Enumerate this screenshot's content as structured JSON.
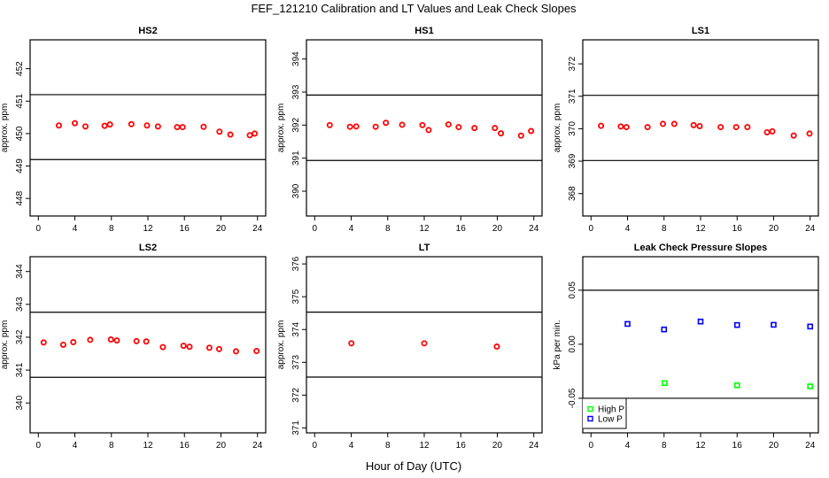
{
  "title": "FEF_121210  Calibration and LT Values and Leak Check Slopes",
  "xlabel": "Hour of Day (UTC)",
  "colors": {
    "calibration": "#ff0000",
    "high_p": "#00ff00",
    "low_p": "#0000ff",
    "reference_lines": "#000000"
  },
  "chart_data": [
    {
      "type": "scatter",
      "title": "HS2",
      "ylabel": "approx. ppm",
      "xlim": [
        -0.9,
        24.9
      ],
      "xticks": [
        0,
        4,
        8,
        12,
        16,
        20,
        24
      ],
      "ylim": [
        447.46,
        452.89
      ],
      "yticks": [
        448,
        449,
        450,
        451,
        452
      ],
      "hlines": [
        451.2,
        449.2
      ],
      "grid": false,
      "series": [
        {
          "color": "#ff0000",
          "marker": "open-circle",
          "x": [
            2.25,
            4.0,
            5.16,
            7.26,
            7.84,
            10.19,
            11.9,
            13.1,
            15.2,
            15.8,
            18.1,
            19.84,
            21.03,
            23.16,
            23.7
          ],
          "y": [
            450.25,
            450.32,
            450.22,
            450.24,
            450.28,
            450.29,
            450.25,
            450.22,
            450.2,
            450.2,
            450.21,
            450.06,
            449.97,
            449.95,
            450.0
          ]
        }
      ]
    },
    {
      "type": "scatter",
      "title": "HS1",
      "ylabel": "approx. ppm",
      "xlim": [
        -0.9,
        24.9
      ],
      "xticks": [
        0,
        4,
        8,
        12,
        16,
        20,
        24
      ],
      "ylim": [
        389.25,
        394.58
      ],
      "yticks": [
        390,
        391,
        392,
        393,
        394
      ],
      "hlines": [
        392.91,
        390.93
      ],
      "grid": false,
      "series": [
        {
          "color": "#ff0000",
          "marker": "open-circle",
          "x": [
            1.65,
            3.87,
            4.55,
            6.68,
            7.8,
            9.58,
            11.8,
            12.48,
            14.65,
            15.77,
            17.5,
            19.74,
            20.4,
            22.6,
            23.7
          ],
          "y": [
            392.0,
            391.95,
            391.96,
            391.95,
            392.07,
            392.01,
            392.0,
            391.85,
            392.02,
            391.94,
            391.91,
            391.91,
            391.75,
            391.68,
            391.82
          ]
        }
      ]
    },
    {
      "type": "scatter",
      "title": "LS1",
      "ylabel": "approx. ppm",
      "xlim": [
        -0.9,
        24.9
      ],
      "xticks": [
        0,
        4,
        8,
        12,
        16,
        20,
        24
      ],
      "ylim": [
        367.31,
        372.74
      ],
      "yticks": [
        368,
        369,
        370,
        371,
        372
      ],
      "hlines": [
        371.03,
        369.02
      ],
      "grid": false,
      "series": [
        {
          "color": "#ff0000",
          "marker": "open-circle",
          "x": [
            1.1,
            3.26,
            3.88,
            6.19,
            7.88,
            9.12,
            11.24,
            11.9,
            14.2,
            15.9,
            17.13,
            19.28,
            19.86,
            22.2,
            23.93
          ],
          "y": [
            370.09,
            370.07,
            370.05,
            370.05,
            370.15,
            370.15,
            370.11,
            370.08,
            370.05,
            370.05,
            370.05,
            369.89,
            369.92,
            369.79,
            369.85
          ]
        }
      ]
    },
    {
      "type": "scatter",
      "title": "LS2",
      "ylabel": "approx. ppm",
      "xlim": [
        -0.9,
        24.9
      ],
      "xticks": [
        0,
        4,
        8,
        12,
        16,
        20,
        24
      ],
      "ylim": [
        339.09,
        344.45
      ],
      "yticks": [
        340,
        341,
        342,
        343,
        344
      ],
      "hlines": [
        342.76,
        340.78
      ],
      "grid": false,
      "series": [
        {
          "color": "#ff0000",
          "marker": "open-circle",
          "x": [
            0.58,
            2.73,
            3.83,
            5.68,
            7.95,
            8.6,
            10.75,
            11.82,
            13.64,
            15.9,
            16.56,
            18.73,
            19.8,
            21.65,
            23.9
          ],
          "y": [
            341.84,
            341.77,
            341.85,
            341.92,
            341.93,
            341.9,
            341.88,
            341.87,
            341.7,
            341.74,
            341.71,
            341.68,
            341.64,
            341.57,
            341.58
          ]
        }
      ]
    },
    {
      "type": "scatter",
      "title": "LT",
      "ylabel": "approx. ppm",
      "xlim": [
        -0.9,
        24.9
      ],
      "xticks": [
        0,
        4,
        8,
        12,
        16,
        20,
        24
      ],
      "ylim": [
        370.85,
        376.22
      ],
      "yticks": [
        371,
        372,
        373,
        374,
        375,
        376
      ],
      "hlines": [
        374.53,
        372.55
      ],
      "grid": false,
      "series": [
        {
          "color": "#ff0000",
          "marker": "open-circle",
          "x": [
            4.02,
            12.0,
            19.95
          ],
          "y": [
            373.58,
            373.58,
            373.48
          ]
        }
      ]
    },
    {
      "type": "scatter",
      "title": "Leak Check Pressure Slopes",
      "ylabel": "kPa per min.",
      "xlim": [
        -0.9,
        24.9
      ],
      "xticks": [
        0,
        4,
        8,
        12,
        16,
        20,
        24
      ],
      "ylim": [
        -0.082,
        0.081
      ],
      "yticks": [
        -0.05,
        0.0,
        0.05
      ],
      "ytick_labels": [
        "-0.05",
        "0.00",
        "0.05"
      ],
      "hlines": [
        0.05,
        -0.05
      ],
      "grid": false,
      "legend": "bottom-left",
      "series": [
        {
          "name": "High P",
          "color": "#00ff00",
          "marker": "open-square",
          "x": [
            8.06,
            16.0,
            24.0
          ],
          "y": [
            -0.036,
            -0.038,
            -0.039
          ]
        },
        {
          "name": "Low P",
          "color": "#0000ff",
          "marker": "open-square",
          "x": [
            4.0,
            8.0,
            12.0,
            16.0,
            20.0,
            24.0
          ],
          "y": [
            0.0188,
            0.0137,
            0.021,
            0.0178,
            0.018,
            0.0164
          ]
        }
      ]
    }
  ]
}
